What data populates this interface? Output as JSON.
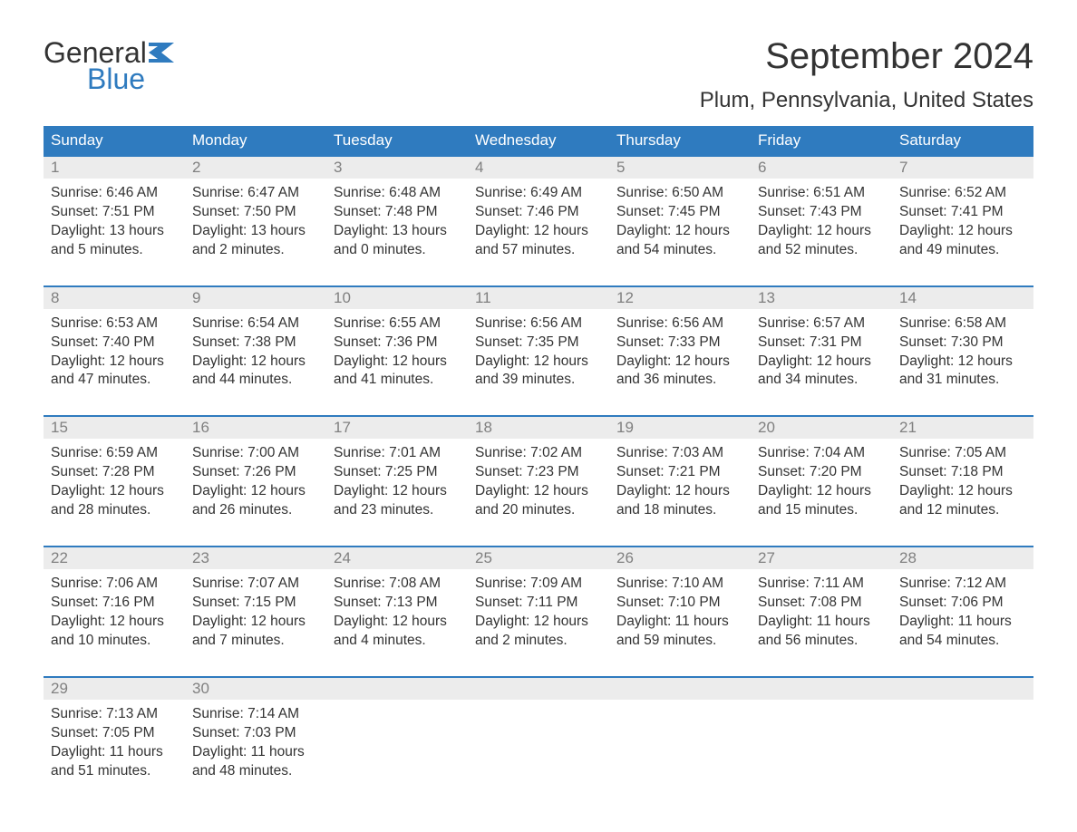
{
  "logo": {
    "top": "General",
    "bottom": "Blue",
    "flag_color": "#2f7bbf"
  },
  "title": "September 2024",
  "location": "Plum, Pennsylvania, United States",
  "colors": {
    "header_bg": "#2f7bbf",
    "header_text": "#ffffff",
    "day_number_bg": "#ececec",
    "day_number_text": "#808080",
    "body_text": "#333333",
    "row_border": "#2f7bbf",
    "page_bg": "#ffffff"
  },
  "weekdays": [
    "Sunday",
    "Monday",
    "Tuesday",
    "Wednesday",
    "Thursday",
    "Friday",
    "Saturday"
  ],
  "weeks": [
    [
      {
        "n": "1",
        "sunrise": "6:46 AM",
        "sunset": "7:51 PM",
        "daylight": "13 hours and 5 minutes."
      },
      {
        "n": "2",
        "sunrise": "6:47 AM",
        "sunset": "7:50 PM",
        "daylight": "13 hours and 2 minutes."
      },
      {
        "n": "3",
        "sunrise": "6:48 AM",
        "sunset": "7:48 PM",
        "daylight": "13 hours and 0 minutes."
      },
      {
        "n": "4",
        "sunrise": "6:49 AM",
        "sunset": "7:46 PM",
        "daylight": "12 hours and 57 minutes."
      },
      {
        "n": "5",
        "sunrise": "6:50 AM",
        "sunset": "7:45 PM",
        "daylight": "12 hours and 54 minutes."
      },
      {
        "n": "6",
        "sunrise": "6:51 AM",
        "sunset": "7:43 PM",
        "daylight": "12 hours and 52 minutes."
      },
      {
        "n": "7",
        "sunrise": "6:52 AM",
        "sunset": "7:41 PM",
        "daylight": "12 hours and 49 minutes."
      }
    ],
    [
      {
        "n": "8",
        "sunrise": "6:53 AM",
        "sunset": "7:40 PM",
        "daylight": "12 hours and 47 minutes."
      },
      {
        "n": "9",
        "sunrise": "6:54 AM",
        "sunset": "7:38 PM",
        "daylight": "12 hours and 44 minutes."
      },
      {
        "n": "10",
        "sunrise": "6:55 AM",
        "sunset": "7:36 PM",
        "daylight": "12 hours and 41 minutes."
      },
      {
        "n": "11",
        "sunrise": "6:56 AM",
        "sunset": "7:35 PM",
        "daylight": "12 hours and 39 minutes."
      },
      {
        "n": "12",
        "sunrise": "6:56 AM",
        "sunset": "7:33 PM",
        "daylight": "12 hours and 36 minutes."
      },
      {
        "n": "13",
        "sunrise": "6:57 AM",
        "sunset": "7:31 PM",
        "daylight": "12 hours and 34 minutes."
      },
      {
        "n": "14",
        "sunrise": "6:58 AM",
        "sunset": "7:30 PM",
        "daylight": "12 hours and 31 minutes."
      }
    ],
    [
      {
        "n": "15",
        "sunrise": "6:59 AM",
        "sunset": "7:28 PM",
        "daylight": "12 hours and 28 minutes."
      },
      {
        "n": "16",
        "sunrise": "7:00 AM",
        "sunset": "7:26 PM",
        "daylight": "12 hours and 26 minutes."
      },
      {
        "n": "17",
        "sunrise": "7:01 AM",
        "sunset": "7:25 PM",
        "daylight": "12 hours and 23 minutes."
      },
      {
        "n": "18",
        "sunrise": "7:02 AM",
        "sunset": "7:23 PM",
        "daylight": "12 hours and 20 minutes."
      },
      {
        "n": "19",
        "sunrise": "7:03 AM",
        "sunset": "7:21 PM",
        "daylight": "12 hours and 18 minutes."
      },
      {
        "n": "20",
        "sunrise": "7:04 AM",
        "sunset": "7:20 PM",
        "daylight": "12 hours and 15 minutes."
      },
      {
        "n": "21",
        "sunrise": "7:05 AM",
        "sunset": "7:18 PM",
        "daylight": "12 hours and 12 minutes."
      }
    ],
    [
      {
        "n": "22",
        "sunrise": "7:06 AM",
        "sunset": "7:16 PM",
        "daylight": "12 hours and 10 minutes."
      },
      {
        "n": "23",
        "sunrise": "7:07 AM",
        "sunset": "7:15 PM",
        "daylight": "12 hours and 7 minutes."
      },
      {
        "n": "24",
        "sunrise": "7:08 AM",
        "sunset": "7:13 PM",
        "daylight": "12 hours and 4 minutes."
      },
      {
        "n": "25",
        "sunrise": "7:09 AM",
        "sunset": "7:11 PM",
        "daylight": "12 hours and 2 minutes."
      },
      {
        "n": "26",
        "sunrise": "7:10 AM",
        "sunset": "7:10 PM",
        "daylight": "11 hours and 59 minutes."
      },
      {
        "n": "27",
        "sunrise": "7:11 AM",
        "sunset": "7:08 PM",
        "daylight": "11 hours and 56 minutes."
      },
      {
        "n": "28",
        "sunrise": "7:12 AM",
        "sunset": "7:06 PM",
        "daylight": "11 hours and 54 minutes."
      }
    ],
    [
      {
        "n": "29",
        "sunrise": "7:13 AM",
        "sunset": "7:05 PM",
        "daylight": "11 hours and 51 minutes."
      },
      {
        "n": "30",
        "sunrise": "7:14 AM",
        "sunset": "7:03 PM",
        "daylight": "11 hours and 48 minutes."
      },
      null,
      null,
      null,
      null,
      null
    ]
  ]
}
